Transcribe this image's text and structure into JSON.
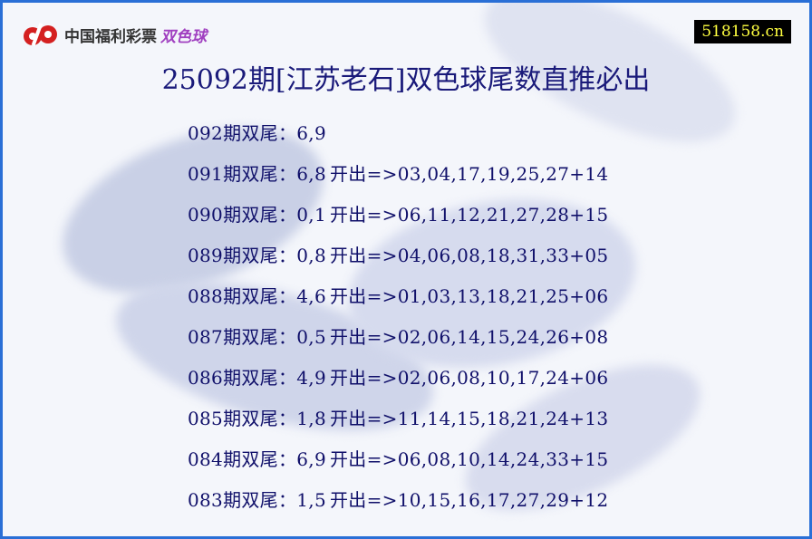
{
  "logo": {
    "brand": "中国福利彩票",
    "game": "双色球",
    "color": "#d42020"
  },
  "badge": {
    "site": "518158.cn"
  },
  "title": "25092期[江苏老石]双色球尾数直推必出",
  "rows": [
    {
      "period": "092",
      "label": "期双尾：",
      "tails": "6,9",
      "draw": ""
    },
    {
      "period": "091",
      "label": "期双尾：",
      "tails": "6,8",
      "draw": "03,04,17,19,25,27+14"
    },
    {
      "period": "090",
      "label": "期双尾：",
      "tails": "0,1",
      "draw": "06,11,12,21,27,28+15"
    },
    {
      "period": "089",
      "label": "期双尾：",
      "tails": "0,8",
      "draw": "04,06,08,18,31,33+05"
    },
    {
      "period": "088",
      "label": "期双尾：",
      "tails": "4,6",
      "draw": "01,03,13,18,21,25+06"
    },
    {
      "period": "087",
      "label": "期双尾：",
      "tails": "0,5",
      "draw": "02,06,14,15,24,26+08"
    },
    {
      "period": "086",
      "label": "期双尾：",
      "tails": "4,9",
      "draw": "02,06,08,10,17,24+06"
    },
    {
      "period": "085",
      "label": "期双尾：",
      "tails": "1,8",
      "draw": "11,14,15,18,21,24+13"
    },
    {
      "period": "084",
      "label": "期双尾：",
      "tails": "6,9",
      "draw": "06,08,10,14,24,33+15"
    },
    {
      "period": "083",
      "label": "期双尾：",
      "tails": "1,5",
      "draw": "10,15,16,17,27,29+12"
    }
  ],
  "open_label": "开出=>"
}
